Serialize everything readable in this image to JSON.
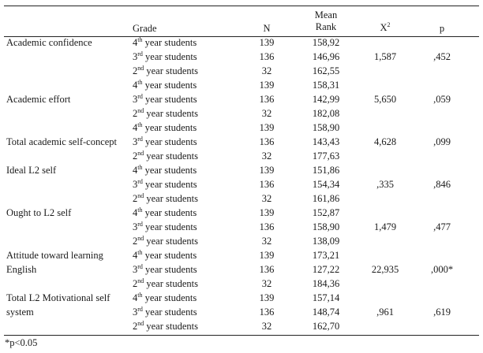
{
  "header": {
    "grade": "Grade",
    "n": "N",
    "mean_rank_line1": "Mean",
    "mean_rank_line2": "Rank",
    "chi_base": "X",
    "chi_sup": "2",
    "p": "p"
  },
  "grade_labels": [
    {
      "ord": "4",
      "sup": "th",
      "text": " year students"
    },
    {
      "ord": "3",
      "sup": "rd",
      "text": " year students"
    },
    {
      "ord": "2",
      "sup": "nd",
      "text": " year students"
    }
  ],
  "variables": [
    {
      "label_lines": [
        "Academic confidence"
      ],
      "label_offset": 0,
      "rows": [
        {
          "n": "139",
          "rank": "158,92"
        },
        {
          "n": "136",
          "rank": "146,96"
        },
        {
          "n": "32",
          "rank": "162,55"
        }
      ],
      "chi2": "1,587",
      "p": ",452"
    },
    {
      "label_lines": [
        "Academic effort"
      ],
      "label_offset": 1,
      "rows": [
        {
          "n": "139",
          "rank": "158,31"
        },
        {
          "n": "136",
          "rank": "142,99"
        },
        {
          "n": "32",
          "rank": "182,08"
        }
      ],
      "chi2": "5,650",
      "p": ",059"
    },
    {
      "label_lines": [
        "Total academic self-concept"
      ],
      "label_offset": 1,
      "rows": [
        {
          "n": "139",
          "rank": "158,90"
        },
        {
          "n": "136",
          "rank": "143,43"
        },
        {
          "n": "32",
          "rank": "177,63"
        }
      ],
      "chi2": "4,628",
      "p": ",099"
    },
    {
      "label_lines": [
        "Ideal L2 self"
      ],
      "label_offset": 0,
      "rows": [
        {
          "n": "139",
          "rank": "151,86"
        },
        {
          "n": "136",
          "rank": "154,34"
        },
        {
          "n": "32",
          "rank": "161,86"
        }
      ],
      "chi2": ",335",
      "p": ",846"
    },
    {
      "label_lines": [
        "Ought to L2 self"
      ],
      "label_offset": 0,
      "rows": [
        {
          "n": "139",
          "rank": "152,87"
        },
        {
          "n": "136",
          "rank": "158,90"
        },
        {
          "n": "32",
          "rank": "138,09"
        }
      ],
      "chi2": "1,479",
      "p": ",477"
    },
    {
      "label_lines": [
        "Attitude toward learning",
        "English"
      ],
      "label_offset": 0,
      "rows": [
        {
          "n": "139",
          "rank": "173,21"
        },
        {
          "n": "136",
          "rank": "127,22"
        },
        {
          "n": "32",
          "rank": "184,36"
        }
      ],
      "chi2": "22,935",
      "p": ",000*"
    },
    {
      "label_lines": [
        "Total L2 Motivational self",
        "system"
      ],
      "label_offset": 0,
      "rows": [
        {
          "n": "139",
          "rank": "157,14"
        },
        {
          "n": "136",
          "rank": "148,74"
        },
        {
          "n": "32",
          "rank": "162,70"
        }
      ],
      "chi2": ",961",
      "p": ",619"
    }
  ],
  "footnote": "*p<0.05"
}
